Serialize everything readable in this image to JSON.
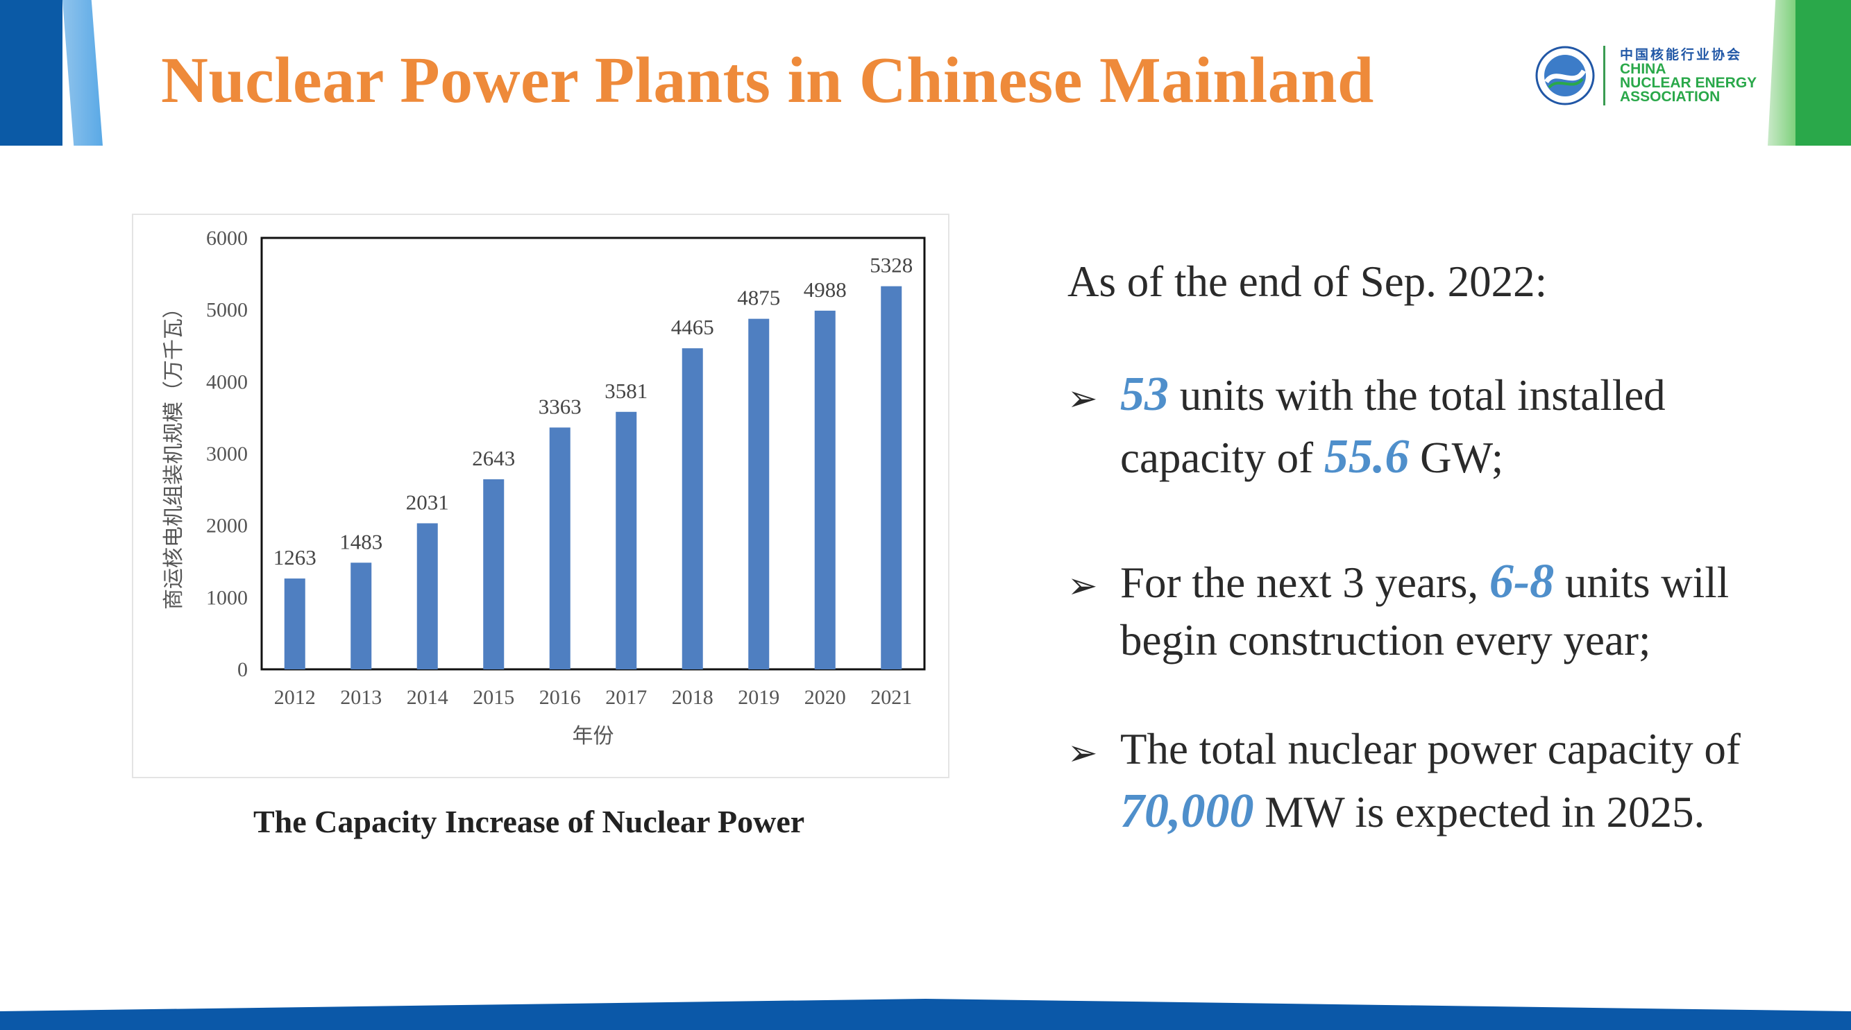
{
  "title": "Nuclear Power Plants in Chinese Mainland",
  "logo": {
    "cn": "中国核能行业协会",
    "en_line1": "CHINA",
    "en_line2": "NUCLEAR ENERGY",
    "en_line3": "ASSOCIATION",
    "colors": {
      "blue": "#2157a6",
      "green": "#2aa84a"
    }
  },
  "chart_caption": "The Capacity Increase of Nuclear Power",
  "chart_data": {
    "type": "bar",
    "categories": [
      "2012",
      "2013",
      "2014",
      "2015",
      "2016",
      "2017",
      "2018",
      "2019",
      "2020",
      "2021"
    ],
    "values": [
      1263,
      1483,
      2031,
      2643,
      3363,
      3581,
      4465,
      4875,
      4988,
      5328
    ],
    "data_labels": [
      "1263",
      "1483",
      "2031",
      "2643",
      "3363",
      "3581",
      "4465",
      "4875",
      "4988",
      "5328"
    ],
    "xlabel": "年份",
    "ylabel": "商运核电机组装机规模（万千瓦）",
    "ylim": [
      0,
      6000
    ],
    "yticks": [
      "0",
      "1000",
      "2000",
      "3000",
      "4000",
      "5000",
      "6000"
    ],
    "bar_color": "#4f7fc1",
    "grid": false,
    "legend": "none"
  },
  "panel": {
    "intro": "As of the end of Sep. 2022:",
    "b1": {
      "n1": "53",
      "t1": " units with the total installed",
      "t2": "capacity of ",
      "n2": "55.6",
      "t3": " GW;"
    },
    "b2": {
      "t1": "For the  next 3 years, ",
      "n1": "6-8",
      "t2": " units will",
      "t3": "begin construction  every year;"
    },
    "b3": {
      "t1": "The total nuclear power capacity of",
      "n1": "70,000",
      "t2": " MW is expected in 2025."
    },
    "arrow_glyph": "➢",
    "highlight_color": "#4f8fcb"
  },
  "colors": {
    "title": "#ee8a3a",
    "header_blue": "#0b5aa6",
    "header_green": "#2aa84a"
  }
}
